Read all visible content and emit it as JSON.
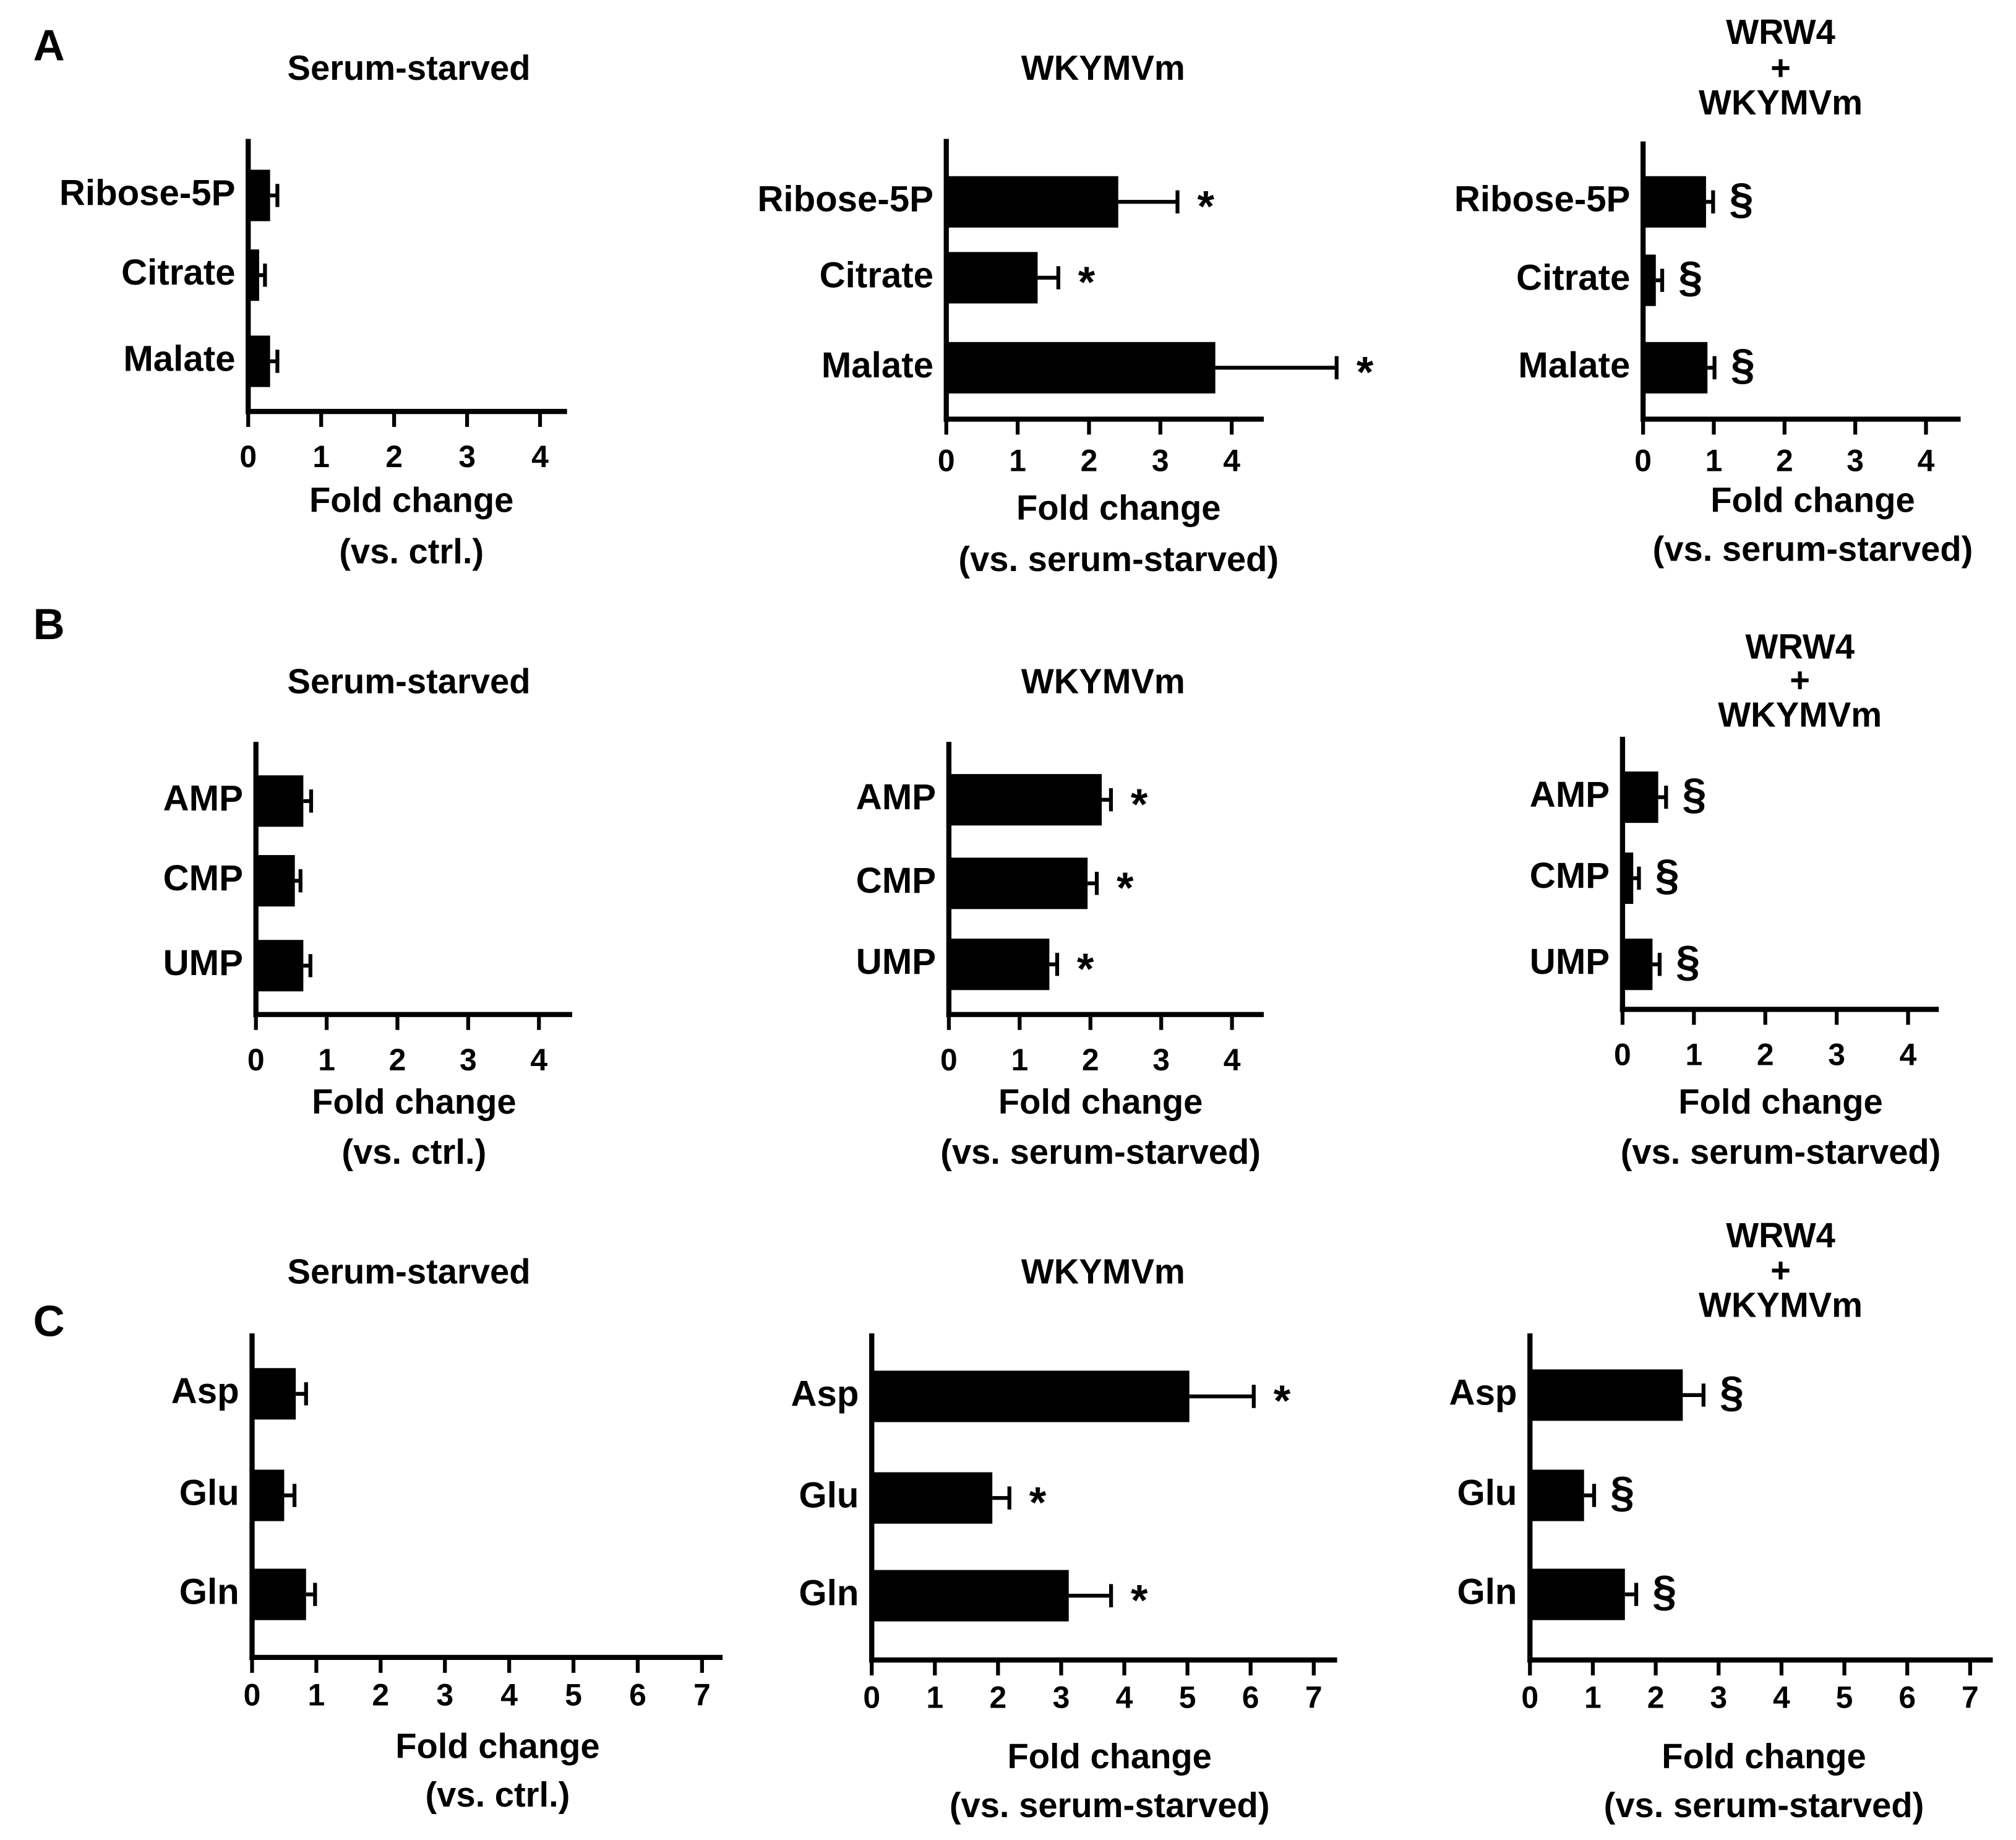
{
  "chart_data": [
    {
      "type": "hbar",
      "panel": "A",
      "title": [
        "Serum-starved"
      ],
      "x_label": [
        "Fold change",
        "(vs. ctrl.)"
      ],
      "categories": [
        "Ribose-5P",
        "Citrate",
        "Malate"
      ],
      "values": [
        0.3,
        0.15,
        0.3
      ],
      "errors": [
        0.1,
        0.08,
        0.1
      ],
      "xlim": [
        0,
        4.37
      ],
      "xticks": [
        0,
        1,
        2,
        3,
        4
      ],
      "color": "#000000"
    },
    {
      "type": "hbar",
      "title": [
        "WKYMVm"
      ],
      "x_label": [
        "Fold change",
        "(vs. serum-starved)"
      ],
      "categories": [
        "Ribose-5P",
        "Citrate",
        "Malate"
      ],
      "values": [
        2.41,
        1.28,
        3.77
      ],
      "errors": [
        0.83,
        0.29,
        1.7
      ],
      "annotations": [
        "*",
        "*",
        "*"
      ],
      "xlim": [
        0,
        4.45
      ],
      "xticks": [
        0,
        1,
        2,
        3,
        4
      ],
      "color": "#000000"
    },
    {
      "type": "hbar",
      "title": [
        "WRW4",
        "+",
        "WKYMVm"
      ],
      "x_label": [
        "Fold change",
        "(vs. serum-starved)"
      ],
      "categories": [
        "Ribose-5P",
        "Citrate",
        "Malate"
      ],
      "values": [
        0.89,
        0.18,
        0.91
      ],
      "errors": [
        0.1,
        0.09,
        0.1
      ],
      "annotations": [
        "§",
        "§",
        "§"
      ],
      "xlim": [
        0,
        4.49
      ],
      "xticks": [
        0,
        1,
        2,
        3,
        4
      ],
      "color": "#000000"
    },
    {
      "type": "hbar",
      "panel": "B",
      "title": [
        "Serum-starved"
      ],
      "x_label": [
        "Fold change",
        "(vs. ctrl.)"
      ],
      "categories": [
        "AMP",
        "CMP",
        "UMP"
      ],
      "values": [
        0.67,
        0.55,
        0.67
      ],
      "errors": [
        0.11,
        0.08,
        0.1
      ],
      "xlim": [
        0,
        4.47
      ],
      "xticks": [
        0,
        1,
        2,
        3,
        4
      ],
      "color": "#000000"
    },
    {
      "type": "hbar",
      "title": [
        "WKYMVm"
      ],
      "x_label": [
        "Fold change",
        "(vs. serum-starved)"
      ],
      "categories": [
        "AMP",
        "CMP",
        "UMP"
      ],
      "values": [
        2.16,
        1.96,
        1.42
      ],
      "errors": [
        0.13,
        0.13,
        0.11
      ],
      "annotations": [
        "*",
        "*",
        "*"
      ],
      "xlim": [
        0,
        4.45
      ],
      "xticks": [
        0,
        1,
        2,
        3,
        4
      ],
      "color": "#000000"
    },
    {
      "type": "hbar",
      "title": [
        "WRW4",
        "+",
        "WKYMVm"
      ],
      "x_label": [
        "Fold change",
        "(vs. serum-starved)"
      ],
      "categories": [
        "AMP",
        "CMP",
        "UMP"
      ],
      "values": [
        0.5,
        0.15,
        0.42
      ],
      "errors": [
        0.11,
        0.08,
        0.1
      ],
      "annotations": [
        "§",
        "§",
        "§"
      ],
      "xlim": [
        0,
        4.43
      ],
      "xticks": [
        0,
        1,
        2,
        3,
        4
      ],
      "color": "#000000"
    },
    {
      "type": "hbar",
      "panel": "C",
      "title": [
        "Serum-starved"
      ],
      "x_label": [
        "Fold change",
        "(vs. ctrl.)"
      ],
      "categories": [
        "Asp",
        "Glu",
        "Gln"
      ],
      "values": [
        0.68,
        0.5,
        0.84
      ],
      "errors": [
        0.16,
        0.16,
        0.14
      ],
      "xlim": [
        0,
        7.32
      ],
      "xticks": [
        0,
        1,
        2,
        3,
        4,
        5,
        6,
        7
      ],
      "color": "#000000"
    },
    {
      "type": "hbar",
      "title": [
        "WKYMVm"
      ],
      "x_label": [
        "Fold change",
        "(vs. serum-starved)"
      ],
      "categories": [
        "Asp",
        "Glu",
        "Gln"
      ],
      "values": [
        5.03,
        1.91,
        3.12
      ],
      "errors": [
        1.02,
        0.27,
        0.67
      ],
      "annotations": [
        "*",
        "*",
        "*"
      ],
      "xlim": [
        0,
        7.37
      ],
      "xticks": [
        0,
        1,
        2,
        3,
        4,
        5,
        6,
        7
      ],
      "color": "#000000"
    },
    {
      "type": "hbar",
      "title": [
        "WRW4",
        "+",
        "WKYMVm"
      ],
      "x_label": [
        "Fold change",
        "(vs. serum-starved)"
      ],
      "categories": [
        "Asp",
        "Glu",
        "Gln"
      ],
      "values": [
        2.43,
        0.86,
        1.51
      ],
      "errors": [
        0.33,
        0.16,
        0.18
      ],
      "annotations": [
        "§",
        "§",
        "§"
      ],
      "xlim": [
        0,
        7.36
      ],
      "xticks": [
        0,
        1,
        2,
        3,
        4,
        5,
        6,
        7
      ],
      "color": "#000000"
    }
  ]
}
